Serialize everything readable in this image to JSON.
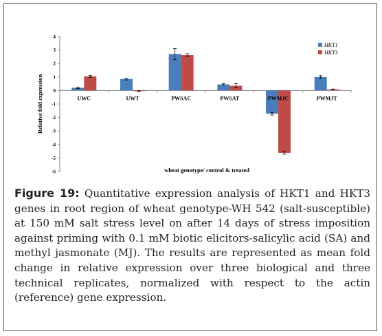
{
  "figure": {
    "label": "Figure 19:",
    "caption": " Quantitative expression analysis of HKT1 and HKT3 genes in root region of wheat genotype-WH 542 (salt-susceptible) at 150 mM salt stress level on after 14 days of stress imposition against priming with 0.1 mM biotic elicitors-salicylic acid (SA) and methyl jasmonate (MJ). The results are represented as mean fold change in relative expression over three biological and three technical replicates, normalized with respect to the actin (reference) gene expression."
  },
  "chart_data": {
    "type": "bar",
    "title": "",
    "xlabel": "wheat genotype/ control & treated",
    "ylabel": "Relative fold expression",
    "ylim": [
      -6,
      4
    ],
    "yticks": [
      4,
      3,
      2,
      1,
      0,
      -1,
      -2,
      -3,
      -4,
      -5,
      -6
    ],
    "categories": [
      "UWC",
      "UWT",
      "PWSAC",
      "PWSAT",
      "PWMJC",
      "PWMJT"
    ],
    "series": [
      {
        "name": "HKT1",
        "color": "#4a7ebb",
        "values": [
          0.2,
          0.85,
          2.7,
          0.45,
          -1.72,
          1.0
        ],
        "errors": [
          0.05,
          0.07,
          0.4,
          0.05,
          0.1,
          0.1
        ]
      },
      {
        "name": "HKT3",
        "color": "#be4b48",
        "values": [
          1.05,
          -0.05,
          2.62,
          0.35,
          -4.62,
          0.08
        ],
        "errors": [
          0.08,
          0.03,
          0.1,
          0.15,
          0.1,
          0.03
        ]
      }
    ],
    "legend_position": "top-right",
    "grid": false
  }
}
